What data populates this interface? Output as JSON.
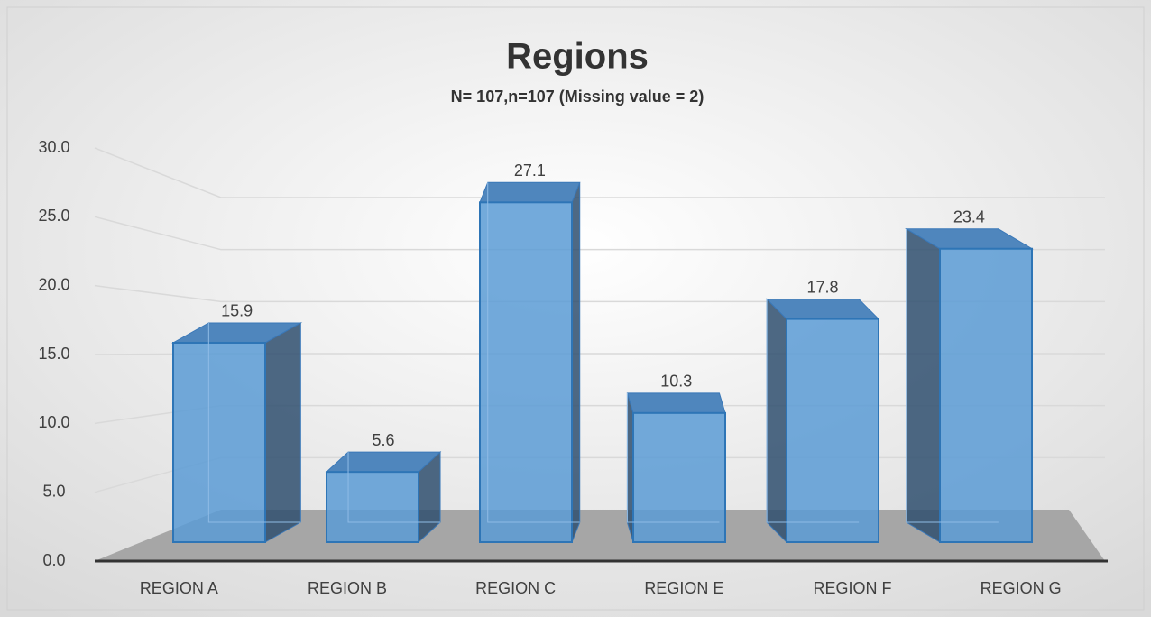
{
  "chart_data": {
    "type": "bar3d",
    "title": "Regions",
    "subtitle": "N= 107,n=107 (Missing value = 2)",
    "categories": [
      "REGION A",
      "REGION B",
      "REGION C",
      "REGION E",
      "REGION F",
      "REGION G"
    ],
    "values": [
      15.9,
      5.6,
      27.1,
      10.3,
      17.8,
      23.4
    ],
    "color": "#5b9bd5",
    "ylim": [
      0,
      30
    ],
    "yticks": [
      {
        "value": 0,
        "label": "0.0"
      },
      {
        "value": 5,
        "label": "5.0"
      },
      {
        "value": 10,
        "label": "10.0"
      },
      {
        "value": 15,
        "label": "15.0"
      },
      {
        "value": 20,
        "label": "20.0"
      },
      {
        "value": 25,
        "label": "25.0"
      },
      {
        "value": 30,
        "label": "30.0"
      }
    ],
    "grid": true
  }
}
